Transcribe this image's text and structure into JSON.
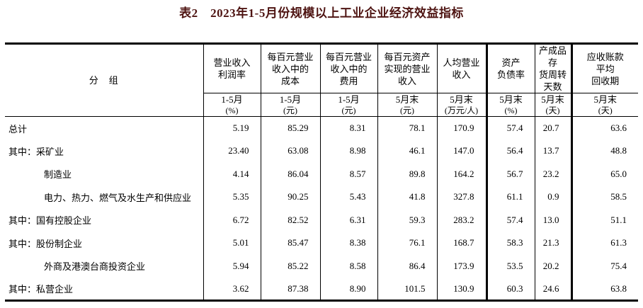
{
  "title": "表2　2023年1-5月份规模以上工业企业经济效益指标",
  "colors": {
    "title_color": "#4e1412",
    "text_color": "#000000",
    "border_color": "#000000",
    "background": "#ffffff"
  },
  "table": {
    "group_header": "分　组",
    "columns": [
      {
        "name": "营业收入利润率",
        "lines": [
          "营业收入",
          "利润率"
        ],
        "period": "1-5月",
        "unit": "(%)"
      },
      {
        "name": "每百元营业收入中的成本",
        "lines": [
          "每百元营业",
          "收入中的",
          "成本"
        ],
        "period": "1-5月",
        "unit": "(元)"
      },
      {
        "name": "每百元营业收入中的费用",
        "lines": [
          "每百元营业",
          "收入中的",
          "费用"
        ],
        "period": "1-5月",
        "unit": "(元)"
      },
      {
        "name": "每百元资产实现的营业收入",
        "lines": [
          "每百元资产",
          "实现的营业",
          "收入"
        ],
        "period": "5月末",
        "unit": "(元)"
      },
      {
        "name": "人均营业收入",
        "lines": [
          "人均营业",
          "收入"
        ],
        "period": "5月末",
        "unit": "(万元/人)"
      },
      {
        "name": "资产负债率",
        "lines": [
          "资产",
          "负债率"
        ],
        "period": "5月末",
        "unit": "(%)"
      },
      {
        "name": "产成品存货周转天数",
        "lines": [
          "产成品存",
          "货周转",
          "天数"
        ],
        "period": "5月末",
        "unit": "(天)"
      },
      {
        "name": "应收账款平均回收期",
        "lines": [
          "应收账款",
          "平均",
          "回收期"
        ],
        "period": "5月末",
        "unit": "(天)"
      }
    ],
    "rows": [
      {
        "prefix": "",
        "label": "总计",
        "indent": 0,
        "values": [
          "5.19",
          "85.29",
          "8.31",
          "78.1",
          "170.9",
          "57.4",
          "20.7",
          "63.6"
        ]
      },
      {
        "prefix": "其中：",
        "label": "采矿业",
        "indent": 0,
        "values": [
          "23.40",
          "63.08",
          "8.98",
          "46.1",
          "147.0",
          "56.4",
          "13.7",
          "48.8"
        ]
      },
      {
        "prefix": "",
        "label": "制造业",
        "indent": 1,
        "values": [
          "4.14",
          "86.04",
          "8.57",
          "89.8",
          "164.2",
          "56.7",
          "23.2",
          "65.0"
        ]
      },
      {
        "prefix": "",
        "label": "电力、热力、燃气及水生产和供应业",
        "indent": 1,
        "values": [
          "5.35",
          "90.25",
          "5.43",
          "41.8",
          "327.8",
          "61.1",
          "0.9",
          "58.5"
        ]
      },
      {
        "prefix": "其中：",
        "label": "国有控股企业",
        "indent": 0,
        "values": [
          "6.72",
          "82.52",
          "6.31",
          "59.3",
          "283.2",
          "57.4",
          "13.0",
          "51.1"
        ]
      },
      {
        "prefix": "其中：",
        "label": "股份制企业",
        "indent": 0,
        "values": [
          "5.01",
          "85.47",
          "8.38",
          "76.1",
          "168.7",
          "58.3",
          "21.3",
          "61.3"
        ]
      },
      {
        "prefix": "",
        "label": "外商及港澳台商投资企业",
        "indent": 1,
        "values": [
          "5.94",
          "85.22",
          "8.58",
          "86.4",
          "173.9",
          "53.5",
          "20.2",
          "75.4"
        ]
      },
      {
        "prefix": "其中：",
        "label": "私营企业",
        "indent": 0,
        "values": [
          "3.62",
          "87.38",
          "8.90",
          "101.5",
          "130.9",
          "60.3",
          "24.6",
          "63.8"
        ]
      }
    ]
  }
}
